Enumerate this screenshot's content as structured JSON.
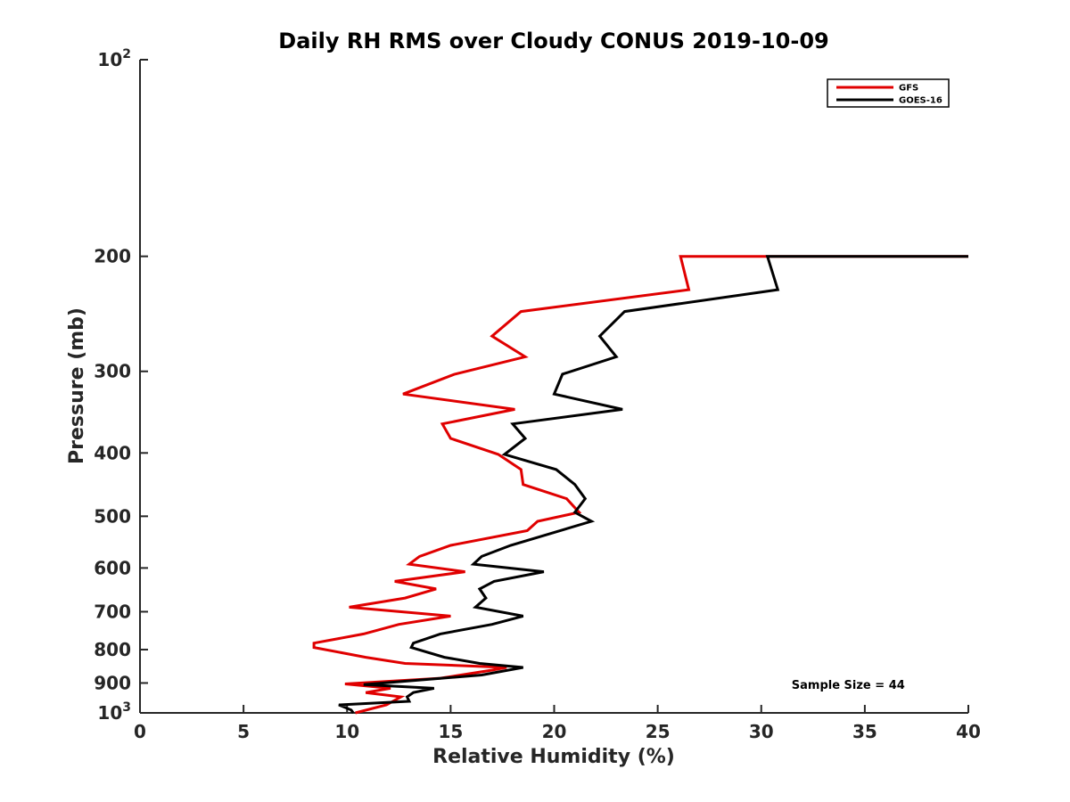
{
  "chart_data": {
    "type": "line",
    "title": "Daily RH RMS over Cloudy CONUS 2019-10-09",
    "xlabel": "Relative Humidity (%)",
    "ylabel": "Pressure (mb)",
    "xlim": [
      0,
      40
    ],
    "ylim": [
      100,
      1000
    ],
    "y_scale": "log",
    "y_reversed": true,
    "x_ticks": [
      "0",
      "5",
      "10",
      "15",
      "20",
      "25",
      "30",
      "35",
      "40"
    ],
    "y_ticks": [
      {
        "value": 100,
        "label": "10",
        "sup": "2"
      },
      {
        "value": 200,
        "label": "200"
      },
      {
        "value": 300,
        "label": "300"
      },
      {
        "value": 400,
        "label": "400"
      },
      {
        "value": 500,
        "label": "500"
      },
      {
        "value": 600,
        "label": "600"
      },
      {
        "value": 700,
        "label": "700"
      },
      {
        "value": 800,
        "label": "800"
      },
      {
        "value": 900,
        "label": "900"
      },
      {
        "value": 1000,
        "label": "10",
        "sup": "3"
      }
    ],
    "grid": false,
    "legend_position": "top-right",
    "series": [
      {
        "name": "GFS",
        "color": "#e00000",
        "points": [
          [
            40.0,
            200
          ],
          [
            30.3,
            200
          ],
          [
            26.1,
            200
          ],
          [
            26.5,
            225
          ],
          [
            18.4,
            243
          ],
          [
            17.0,
            265
          ],
          [
            18.6,
            285
          ],
          [
            15.2,
            303
          ],
          [
            12.7,
            325
          ],
          [
            18.1,
            343
          ],
          [
            14.6,
            361
          ],
          [
            15.0,
            380
          ],
          [
            17.3,
            402
          ],
          [
            18.4,
            424
          ],
          [
            18.5,
            447
          ],
          [
            20.6,
            470
          ],
          [
            21.2,
            493
          ],
          [
            19.2,
            509
          ],
          [
            18.7,
            526
          ],
          [
            15.0,
            554
          ],
          [
            13.5,
            576
          ],
          [
            13.0,
            592
          ],
          [
            15.7,
            608
          ],
          [
            12.3,
            629
          ],
          [
            14.3,
            646
          ],
          [
            12.8,
            667
          ],
          [
            10.1,
            689
          ],
          [
            15.0,
            711
          ],
          [
            12.5,
            732
          ],
          [
            10.8,
            757
          ],
          [
            8.4,
            782
          ],
          [
            8.4,
            794
          ],
          [
            10.9,
            822
          ],
          [
            12.8,
            840
          ],
          [
            17.7,
            852
          ],
          [
            17.0,
            860
          ],
          [
            14.5,
            885
          ],
          [
            9.9,
            903
          ],
          [
            12.1,
            917
          ],
          [
            10.9,
            931
          ],
          [
            12.6,
            945
          ],
          [
            11.9,
            972
          ],
          [
            10.4,
            1000
          ]
        ]
      },
      {
        "name": "GOES-16",
        "color": "#000000",
        "points": [
          [
            40.0,
            200
          ],
          [
            30.3,
            200
          ],
          [
            30.8,
            225
          ],
          [
            23.4,
            243
          ],
          [
            22.2,
            265
          ],
          [
            23.0,
            285
          ],
          [
            20.4,
            303
          ],
          [
            20.0,
            325
          ],
          [
            23.3,
            343
          ],
          [
            18.0,
            361
          ],
          [
            18.6,
            380
          ],
          [
            17.6,
            402
          ],
          [
            20.1,
            424
          ],
          [
            21.0,
            447
          ],
          [
            21.5,
            470
          ],
          [
            21.0,
            493
          ],
          [
            21.8,
            509
          ],
          [
            17.9,
            554
          ],
          [
            16.5,
            576
          ],
          [
            16.1,
            592
          ],
          [
            19.5,
            608
          ],
          [
            17.1,
            629
          ],
          [
            16.4,
            646
          ],
          [
            16.7,
            667
          ],
          [
            16.2,
            689
          ],
          [
            18.5,
            711
          ],
          [
            17.0,
            732
          ],
          [
            14.5,
            757
          ],
          [
            13.2,
            782
          ],
          [
            13.1,
            794
          ],
          [
            14.7,
            822
          ],
          [
            16.4,
            840
          ],
          [
            18.5,
            852
          ],
          [
            16.5,
            875
          ],
          [
            10.8,
            905
          ],
          [
            14.2,
            917
          ],
          [
            13.2,
            931
          ],
          [
            12.9,
            945
          ],
          [
            13.0,
            960
          ],
          [
            9.6,
            972
          ],
          [
            10.2,
            990
          ],
          [
            10.3,
            1000
          ]
        ]
      }
    ],
    "annotations": [
      {
        "text": "Sample Size = 44",
        "x": 34.2,
        "y": 905
      }
    ]
  }
}
